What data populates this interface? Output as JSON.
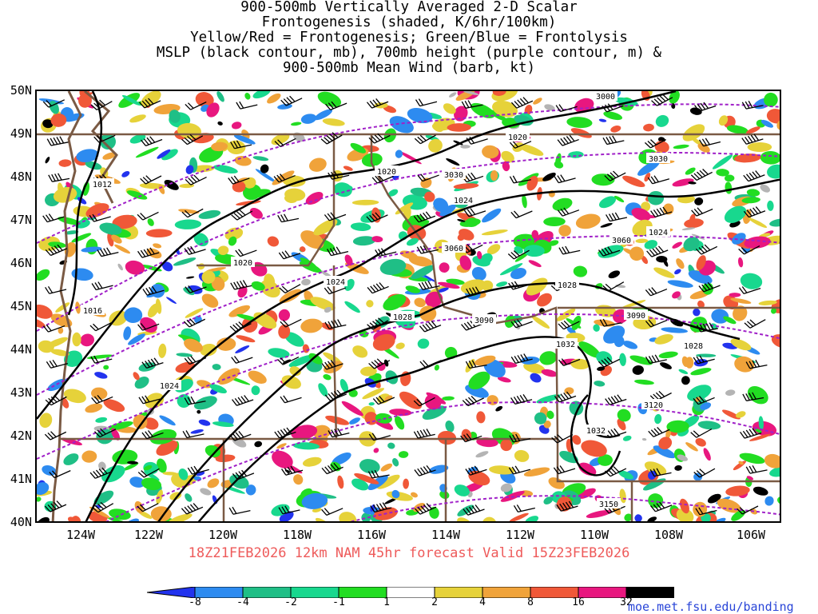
{
  "title_lines": [
    "900-500mb Vertically Averaged 2-D Scalar",
    "Frontogenesis (shaded, K/6hr/100km)",
    "Yellow/Red = Frontogenesis;  Green/Blue = Frontolysis",
    "MSLP (black contour, mb), 700mb height (purple contour, m) &",
    "900-500mb Mean Wind (barb, kt)"
  ],
  "lat_labels": [
    "50N",
    "49N",
    "48N",
    "47N",
    "46N",
    "45N",
    "44N",
    "43N",
    "42N",
    "41N",
    "40N"
  ],
  "lon_labels": [
    "124W",
    "122W",
    "120W",
    "118W",
    "116W",
    "114W",
    "112W",
    "110W",
    "108W",
    "106W"
  ],
  "forecast_line": "18Z21FEB2026 12km NAM 45hr forecast Valid 15Z23FEB2026",
  "mslp_labels": [
    "1012",
    "1016",
    "1020",
    "1020",
    "1020",
    "1024",
    "1024",
    "1024",
    "1024",
    "1028",
    "1028",
    "1028",
    "1032",
    "1032"
  ],
  "height_labels": [
    "3000",
    "3030",
    "3030",
    "3060",
    "3060",
    "3090",
    "3090",
    "3120",
    "3150"
  ],
  "colorbar": {
    "labels": [
      "-8",
      "-4",
      "-2",
      "-1",
      "1",
      "2",
      "4",
      "8",
      "16",
      "32"
    ],
    "colors": [
      "#2233ee",
      "#2d8bf0",
      "#1fbf86",
      "#18d88e",
      "#22dd22",
      "#ffffff",
      "#e6d23a",
      "#f0a33a",
      "#f05838",
      "#e8177f",
      "#000000",
      "#b4b4b4"
    ]
  },
  "credit": "moe.met.fsu.edu/banding"
}
